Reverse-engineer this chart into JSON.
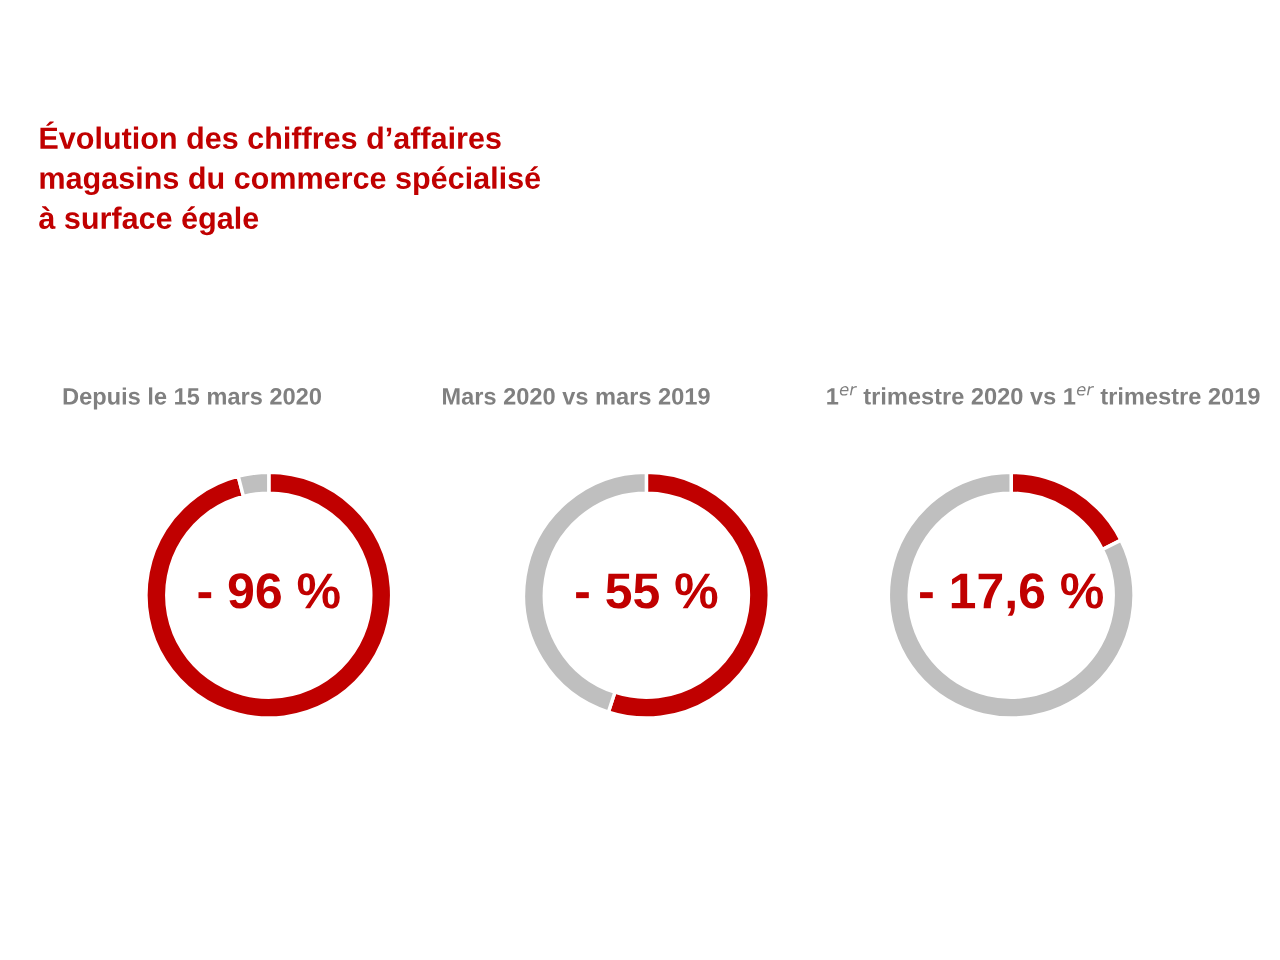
{
  "chart_data": [
    {
      "type": "donut",
      "title": "Évolution des chiffres d’affaires\nmagasins du commerce spécialisé\nà surface égale",
      "subtitle": "Depuis le 15 mars 2020",
      "categories": [
        null,
        null
      ],
      "values": [
        96,
        4
      ],
      "colors": [
        "#c00000",
        "#bfbfbf"
      ],
      "annotations": [
        "- 96 %"
      ]
    },
    {
      "type": "donut",
      "subtitle": "Mars 2020 vs mars 2019",
      "categories": [
        null,
        null
      ],
      "values": [
        55,
        45
      ],
      "colors": [
        "#c00000",
        "#bfbfbf"
      ],
      "annotations": [
        "- 55 %"
      ]
    },
    {
      "type": "donut",
      "subtitle": "1$^{er}$ trimestre 2020 vs 1$^{er}$ trimestre 2019",
      "categories": [
        null,
        null
      ],
      "values": [
        17.6,
        82.4
      ],
      "colors": [
        "#c00000",
        "#bfbfbf"
      ],
      "annotations": [
        "- 17,6 %"
      ]
    }
  ]
}
